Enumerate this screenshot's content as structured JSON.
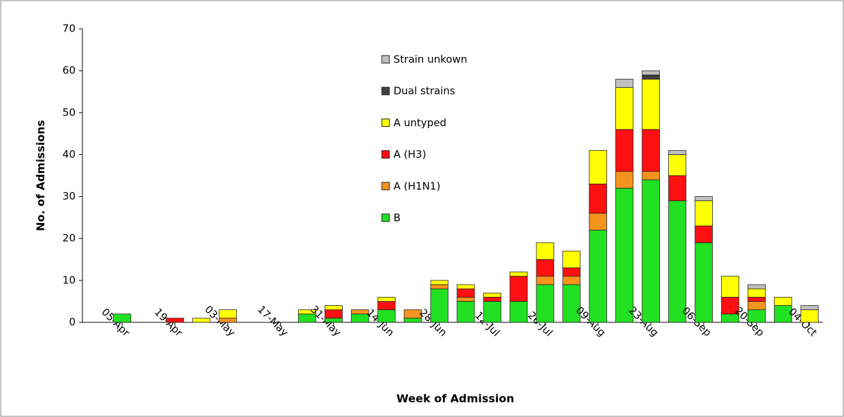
{
  "chart_data": {
    "type": "stacked_bar",
    "x_label": "Week of Admission",
    "y_label": "No. of Admissions",
    "categories": [
      null,
      "05-Apr",
      null,
      "19-Apr",
      null,
      "03-May",
      null,
      "17-May",
      null,
      "31-May",
      null,
      "14-Jun",
      null,
      "28-Jun",
      null,
      "12-Jul",
      null,
      "26-Jul",
      null,
      "09-Aug",
      null,
      "23-Aug",
      null,
      "06-Sep",
      null,
      "20-Sep",
      null,
      "04-Oct"
    ],
    "series": [
      {
        "name": "B",
        "color": "#22e022",
        "values": [
          0,
          2,
          0,
          0,
          0,
          0,
          0,
          0,
          2,
          1,
          2,
          3,
          1,
          8,
          5,
          5,
          5,
          9,
          9,
          22,
          32,
          34,
          29,
          19,
          2,
          3,
          4,
          0
        ]
      },
      {
        "name": "A (H1N1)",
        "color": "#f7941d",
        "values": [
          0,
          0,
          0,
          0,
          0,
          1,
          0,
          0,
          0,
          0,
          1,
          0,
          2,
          1,
          1,
          0,
          0,
          2,
          2,
          4,
          4,
          2,
          0,
          0,
          0,
          2,
          0,
          0
        ]
      },
      {
        "name": "A (H3)",
        "color": "#ff1010",
        "values": [
          0,
          0,
          0,
          1,
          0,
          0,
          0,
          0,
          0,
          2,
          0,
          2,
          0,
          0,
          2,
          1,
          6,
          4,
          2,
          7,
          10,
          10,
          6,
          4,
          4,
          1,
          0,
          0
        ]
      },
      {
        "name": "A untyped",
        "color": "#ffff00",
        "values": [
          0,
          0,
          0,
          0,
          1,
          2,
          0,
          0,
          1,
          1,
          0,
          1,
          0,
          1,
          1,
          1,
          1,
          4,
          4,
          8,
          10,
          12,
          5,
          6,
          5,
          2,
          2,
          3
        ]
      },
      {
        "name": "Dual strains",
        "color": "#404040",
        "values": [
          0,
          0,
          0,
          0,
          0,
          0,
          0,
          0,
          0,
          0,
          0,
          0,
          0,
          0,
          0,
          0,
          0,
          0,
          0,
          0,
          0,
          1,
          0,
          0,
          0,
          0,
          0,
          0
        ]
      },
      {
        "name": "Strain unkown",
        "color": "#c0c0c0",
        "values": [
          0,
          0,
          0,
          0,
          0,
          0,
          0,
          0,
          0,
          0,
          0,
          0,
          0,
          0,
          0,
          0,
          0,
          0,
          0,
          0,
          2,
          1,
          1,
          1,
          0,
          1,
          0,
          1
        ]
      }
    ],
    "ylim": [
      0,
      70
    ],
    "yticks": [
      0,
      10,
      20,
      30,
      40,
      50,
      60,
      70
    ]
  }
}
